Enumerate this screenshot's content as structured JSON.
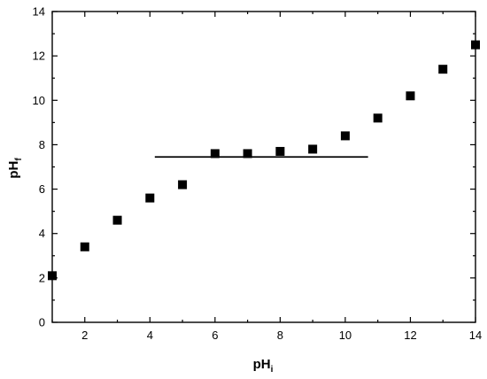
{
  "chart_data": {
    "type": "scatter",
    "title": "",
    "xlabel": "pH",
    "xlabel_subscript": "i",
    "ylabel": "pH",
    "ylabel_subscript": "f",
    "xlim": [
      1,
      14
    ],
    "ylim": [
      0,
      14
    ],
    "x_ticks": [
      2,
      4,
      6,
      8,
      10,
      12,
      14
    ],
    "y_ticks": [
      0,
      2,
      4,
      6,
      8,
      10,
      12,
      14
    ],
    "grid": false,
    "legend": "none",
    "marker": "square",
    "marker_color": "#000000",
    "series": [
      {
        "x": [
          1,
          2,
          3,
          4,
          5,
          6,
          7,
          8,
          9,
          10,
          11,
          12,
          13,
          14
        ],
        "y": [
          2.1,
          3.4,
          4.6,
          5.6,
          6.2,
          7.6,
          7.6,
          7.7,
          7.8,
          8.4,
          9.2,
          10.2,
          11.4,
          12.5
        ]
      }
    ],
    "reference_line": {
      "y": 7.45,
      "x_start": 4.15,
      "x_end": 10.7,
      "color": "#000000"
    }
  }
}
